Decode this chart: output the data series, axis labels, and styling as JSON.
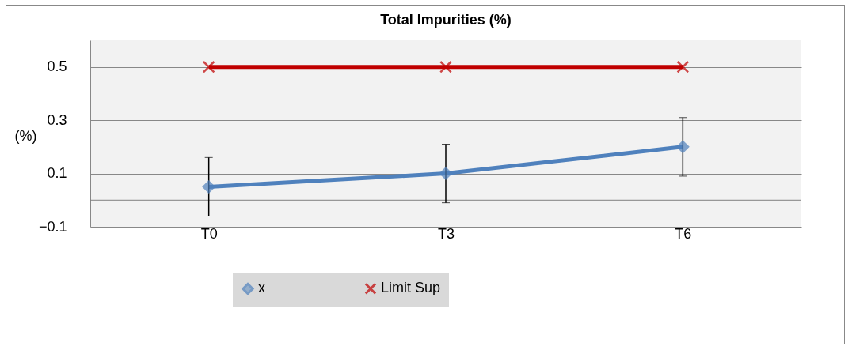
{
  "chart_data": {
    "type": "line",
    "title": "Total Impurities (%)",
    "ylabel": "(%)",
    "categories": [
      "T0",
      "T3",
      "T6"
    ],
    "series": [
      {
        "name": "x",
        "color": "#4f81bd",
        "values": [
          0.05,
          0.1,
          0.2
        ],
        "errors": [
          0.11,
          0.11,
          0.11
        ],
        "marker": "diamond"
      },
      {
        "name": "Limit Sup",
        "color": "#c00000",
        "values": [
          0.5,
          0.5,
          0.5
        ],
        "marker": "cross"
      }
    ],
    "ylim": [
      -0.1,
      0.6
    ],
    "yticks": [
      -0.1,
      0.1,
      0.3,
      0.5
    ],
    "ref_lines": [
      {
        "axis": "y",
        "value": 0,
        "color": "#808080"
      }
    ],
    "grid": "y",
    "legend": "bottom"
  }
}
